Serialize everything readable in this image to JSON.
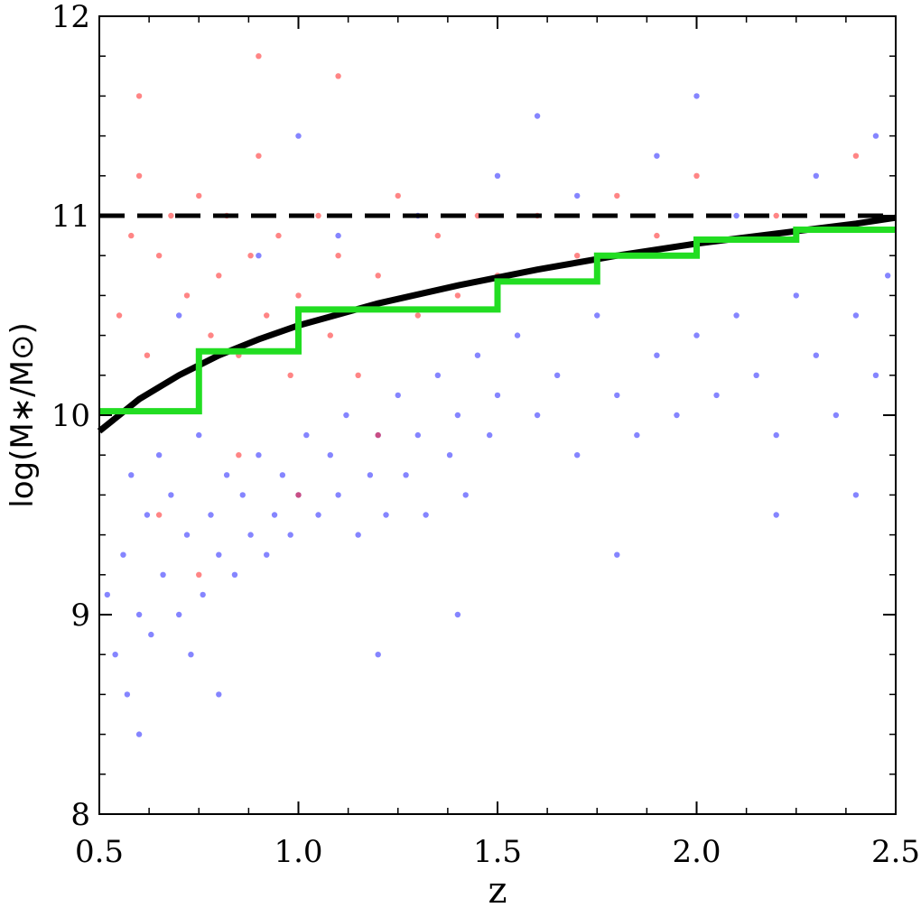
{
  "chart_data": {
    "type": "scatter",
    "title": "",
    "xlabel": "z",
    "ylabel": "log(M∗/M⊙)",
    "xlim": [
      0.5,
      2.5
    ],
    "ylim": [
      8,
      12
    ],
    "x_ticks": [
      "0.5",
      "1.0",
      "1.5",
      "2.0",
      "2.5"
    ],
    "y_ticks": [
      "8",
      "9",
      "10",
      "11",
      "12"
    ],
    "grid": false,
    "legend": "none",
    "series": [
      {
        "kind": "scatter",
        "color": "#2020ff",
        "points": [
          [
            0.52,
            9.1
          ],
          [
            0.54,
            8.8
          ],
          [
            0.56,
            9.3
          ],
          [
            0.57,
            8.6
          ],
          [
            0.58,
            9.7
          ],
          [
            0.6,
            9.0
          ],
          [
            0.62,
            9.5
          ],
          [
            0.63,
            8.9
          ],
          [
            0.65,
            9.8
          ],
          [
            0.66,
            9.2
          ],
          [
            0.68,
            9.6
          ],
          [
            0.7,
            9.0
          ],
          [
            0.72,
            9.4
          ],
          [
            0.73,
            8.8
          ],
          [
            0.75,
            9.9
          ],
          [
            0.76,
            9.1
          ],
          [
            0.78,
            9.5
          ],
          [
            0.8,
            9.3
          ],
          [
            0.82,
            9.7
          ],
          [
            0.84,
            9.2
          ],
          [
            0.86,
            9.6
          ],
          [
            0.88,
            9.4
          ],
          [
            0.9,
            9.8
          ],
          [
            0.92,
            9.3
          ],
          [
            0.94,
            9.5
          ],
          [
            0.96,
            9.7
          ],
          [
            0.98,
            9.4
          ],
          [
            1.0,
            9.6
          ],
          [
            1.02,
            9.9
          ],
          [
            1.05,
            9.5
          ],
          [
            1.08,
            9.8
          ],
          [
            1.1,
            9.6
          ],
          [
            1.12,
            10.0
          ],
          [
            1.15,
            9.4
          ],
          [
            1.18,
            9.7
          ],
          [
            1.2,
            9.9
          ],
          [
            1.22,
            9.5
          ],
          [
            1.25,
            10.1
          ],
          [
            1.27,
            9.7
          ],
          [
            1.3,
            9.9
          ],
          [
            1.32,
            9.5
          ],
          [
            1.35,
            10.2
          ],
          [
            1.38,
            9.8
          ],
          [
            1.4,
            10.0
          ],
          [
            1.42,
            9.6
          ],
          [
            1.45,
            10.3
          ],
          [
            1.48,
            9.9
          ],
          [
            1.5,
            10.1
          ],
          [
            1.55,
            10.4
          ],
          [
            1.6,
            10.0
          ],
          [
            1.65,
            10.2
          ],
          [
            1.7,
            9.8
          ],
          [
            1.75,
            10.5
          ],
          [
            1.8,
            10.1
          ],
          [
            1.85,
            9.9
          ],
          [
            1.9,
            10.3
          ],
          [
            1.95,
            10.0
          ],
          [
            2.0,
            10.4
          ],
          [
            2.05,
            10.1
          ],
          [
            2.1,
            10.5
          ],
          [
            2.15,
            10.2
          ],
          [
            2.2,
            9.9
          ],
          [
            2.25,
            10.6
          ],
          [
            2.3,
            10.3
          ],
          [
            2.35,
            10.0
          ],
          [
            2.4,
            10.5
          ],
          [
            2.45,
            10.2
          ],
          [
            2.48,
            10.7
          ],
          [
            0.7,
            10.5
          ],
          [
            0.9,
            10.8
          ],
          [
            1.1,
            10.9
          ],
          [
            1.3,
            11.0
          ],
          [
            1.5,
            11.2
          ],
          [
            1.7,
            11.1
          ],
          [
            1.9,
            11.3
          ],
          [
            2.1,
            11.0
          ],
          [
            2.3,
            11.2
          ],
          [
            0.6,
            8.4
          ],
          [
            0.8,
            8.6
          ],
          [
            1.2,
            8.8
          ],
          [
            1.4,
            9.0
          ],
          [
            1.8,
            9.3
          ],
          [
            2.2,
            9.5
          ],
          [
            2.4,
            9.6
          ],
          [
            1.0,
            11.4
          ],
          [
            1.6,
            11.5
          ],
          [
            2.0,
            11.6
          ],
          [
            2.45,
            11.4
          ]
        ]
      },
      {
        "kind": "scatter",
        "color": "#ff2020",
        "points": [
          [
            0.55,
            10.5
          ],
          [
            0.58,
            10.9
          ],
          [
            0.6,
            11.2
          ],
          [
            0.62,
            10.3
          ],
          [
            0.65,
            10.8
          ],
          [
            0.68,
            11.0
          ],
          [
            0.7,
            10.2
          ],
          [
            0.72,
            10.6
          ],
          [
            0.75,
            11.1
          ],
          [
            0.78,
            10.4
          ],
          [
            0.8,
            10.7
          ],
          [
            0.82,
            11.0
          ],
          [
            0.85,
            10.3
          ],
          [
            0.88,
            10.8
          ],
          [
            0.9,
            11.3
          ],
          [
            0.92,
            10.5
          ],
          [
            0.95,
            10.9
          ],
          [
            0.98,
            10.2
          ],
          [
            1.0,
            10.6
          ],
          [
            1.05,
            11.0
          ],
          [
            1.08,
            10.4
          ],
          [
            1.1,
            10.8
          ],
          [
            1.15,
            10.2
          ],
          [
            1.2,
            10.7
          ],
          [
            1.25,
            11.1
          ],
          [
            1.3,
            10.5
          ],
          [
            1.35,
            10.9
          ],
          [
            1.4,
            10.6
          ],
          [
            1.45,
            11.0
          ],
          [
            1.5,
            10.7
          ],
          [
            1.6,
            11.0
          ],
          [
            1.7,
            10.8
          ],
          [
            1.8,
            11.1
          ],
          [
            1.9,
            10.9
          ],
          [
            2.0,
            11.2
          ],
          [
            2.2,
            11.0
          ],
          [
            2.4,
            11.3
          ],
          [
            0.65,
            9.5
          ],
          [
            0.85,
            9.8
          ],
          [
            1.0,
            9.6
          ],
          [
            1.2,
            9.9
          ],
          [
            0.75,
            9.2
          ],
          [
            0.6,
            11.6
          ],
          [
            0.9,
            11.8
          ],
          [
            1.1,
            11.7
          ]
        ]
      },
      {
        "kind": "line",
        "name": "",
        "color": "#000000",
        "style": "solid",
        "x": [
          0.5,
          0.6,
          0.7,
          0.8,
          0.9,
          1.0,
          1.2,
          1.4,
          1.6,
          1.8,
          2.0,
          2.2,
          2.4,
          2.5
        ],
        "y": [
          9.92,
          10.08,
          10.2,
          10.3,
          10.38,
          10.45,
          10.56,
          10.65,
          10.73,
          10.8,
          10.86,
          10.91,
          10.96,
          10.99
        ]
      },
      {
        "kind": "line",
        "name": "",
        "color": "#000000",
        "style": "dashed",
        "x": [
          0.5,
          2.5
        ],
        "y": [
          11.0,
          11.0
        ]
      },
      {
        "kind": "step",
        "name": "",
        "color": "#22dd22",
        "x": [
          0.5,
          0.75,
          0.75,
          1.0,
          1.0,
          1.5,
          1.5,
          1.75,
          1.75,
          2.0,
          2.0,
          2.25,
          2.25,
          2.5
        ],
        "y": [
          10.02,
          10.02,
          10.32,
          10.32,
          10.53,
          10.53,
          10.67,
          10.67,
          10.8,
          10.8,
          10.88,
          10.88,
          10.93,
          10.93
        ]
      }
    ]
  }
}
